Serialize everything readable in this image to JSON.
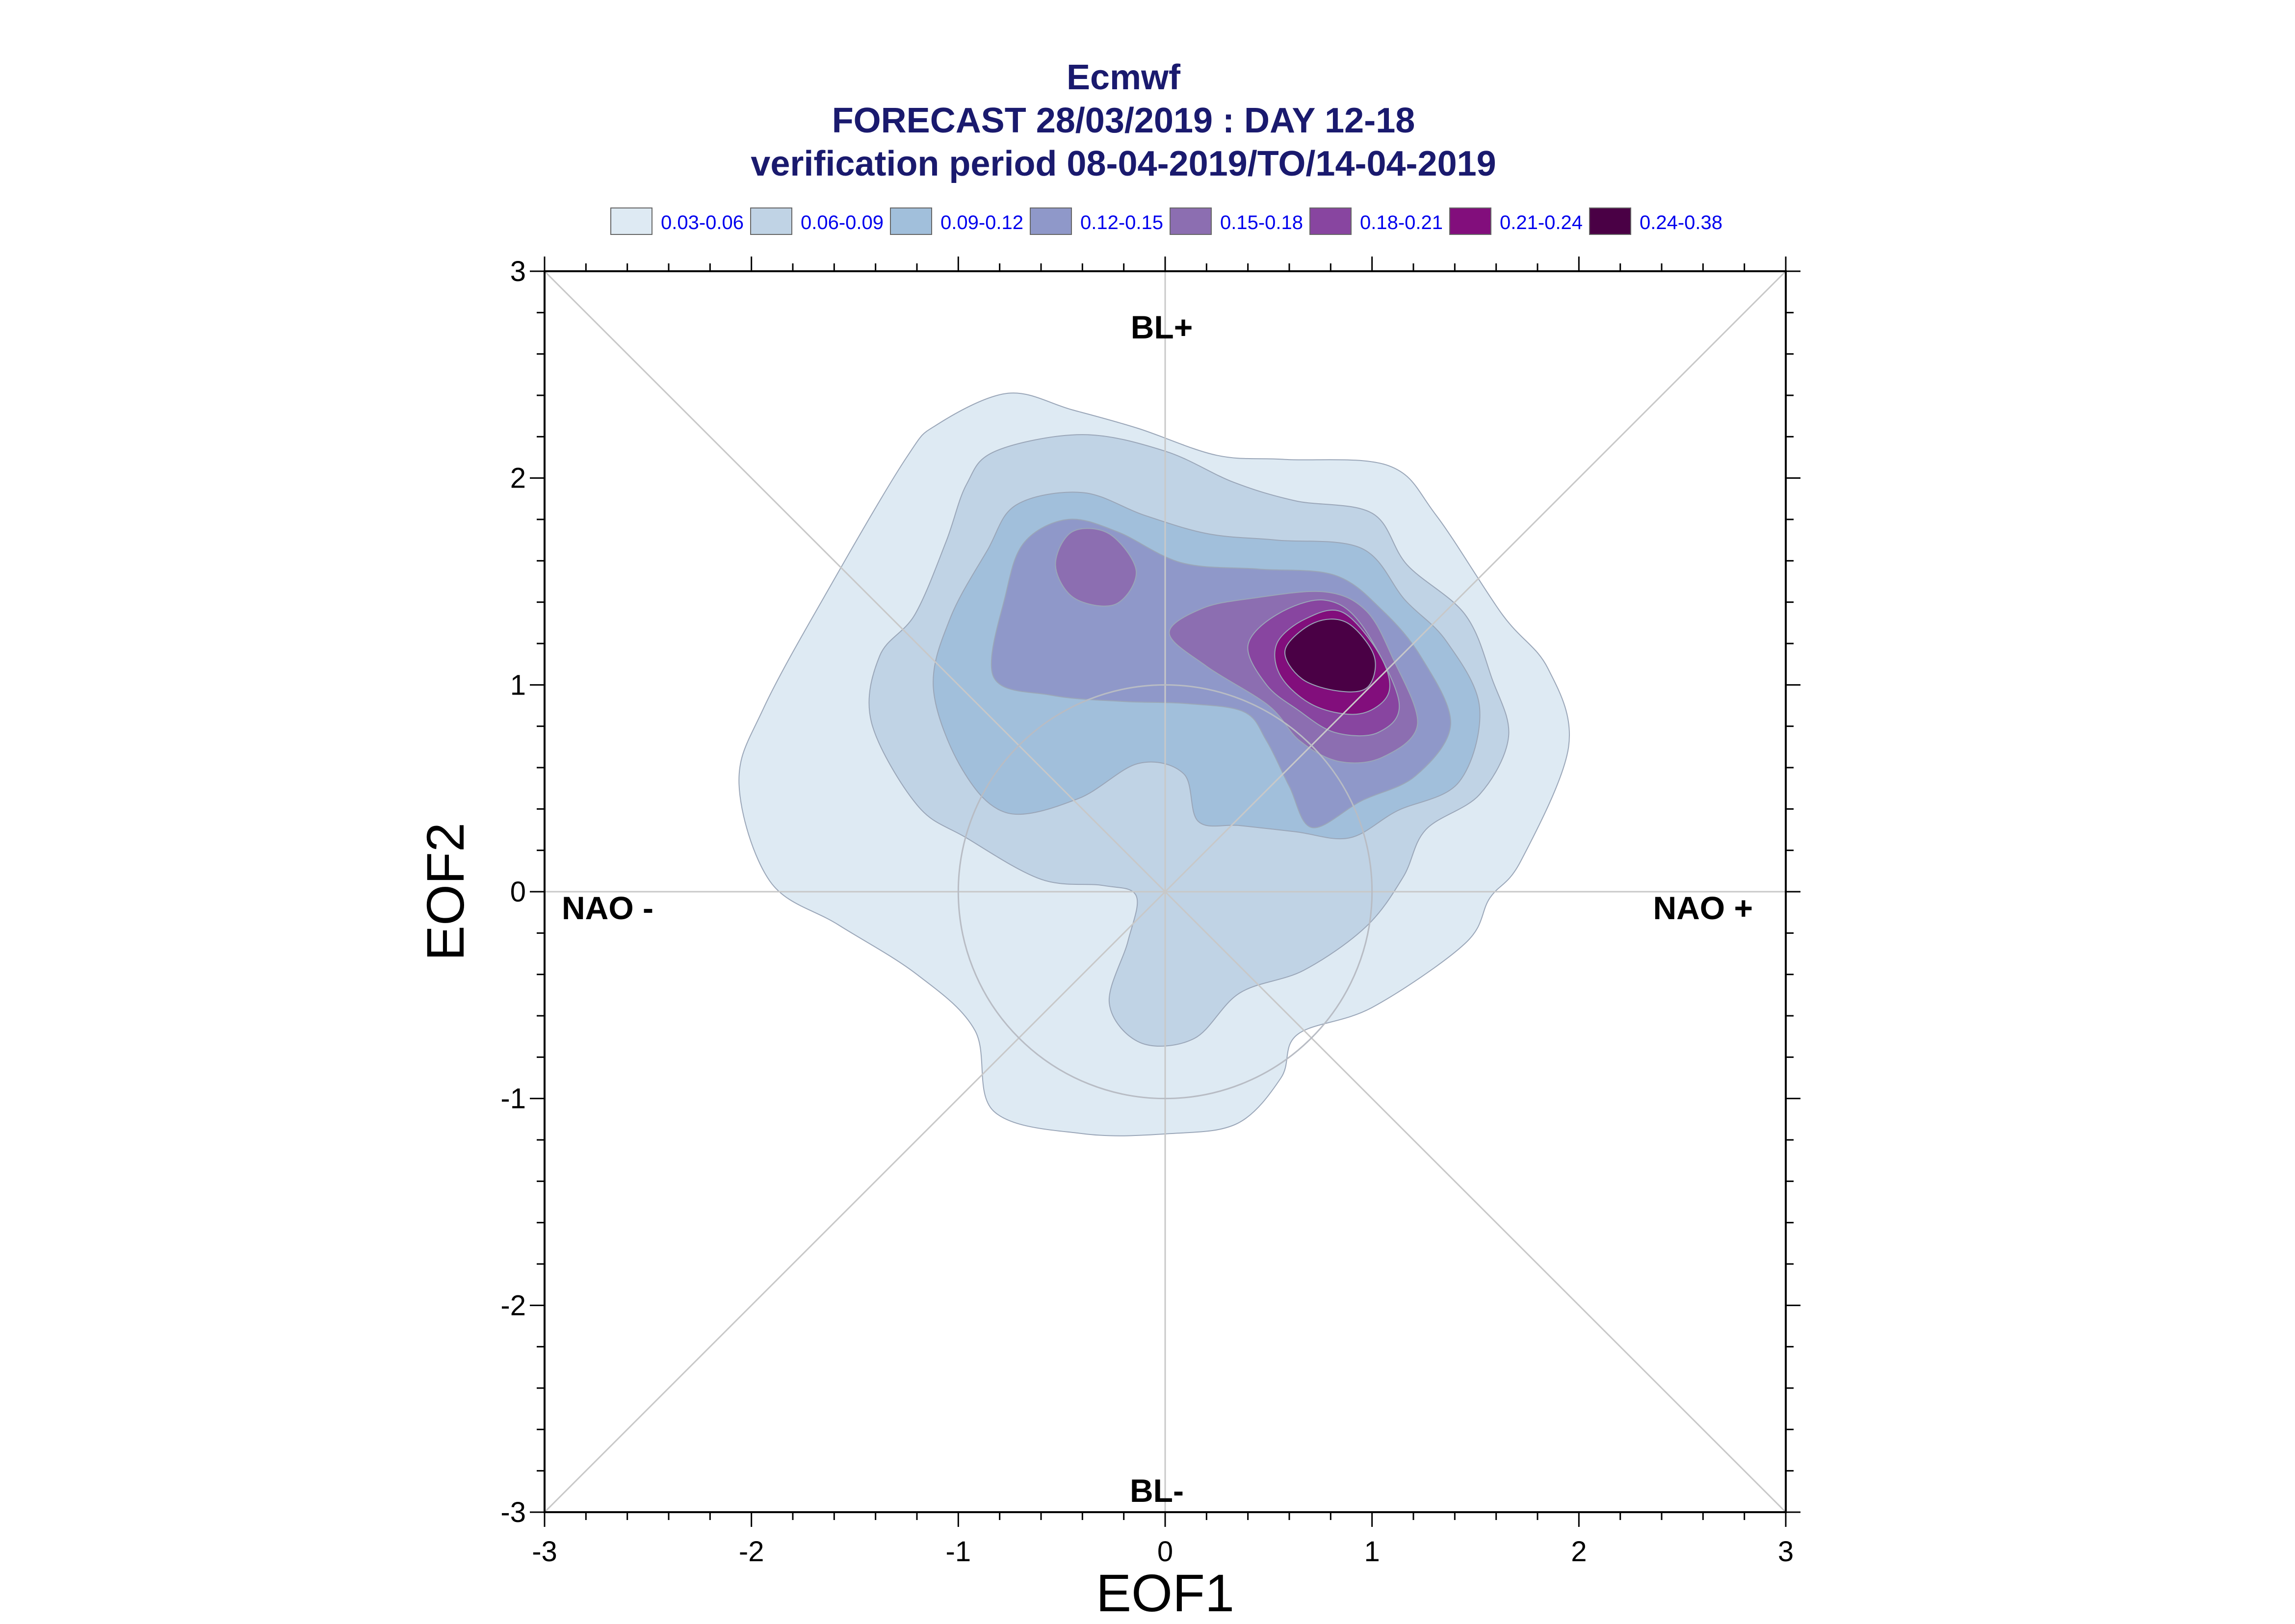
{
  "chart_data": {
    "type": "contour",
    "title": "Ecmwf",
    "subtitle": "FORECAST 28/03/2019 : DAY 12-18",
    "subtitle2": "verification period 08-04-2019/TO/14-04-2019",
    "xlabel": "EOF1",
    "ylabel": "EOF2",
    "xlim": [
      -3,
      3
    ],
    "ylim": [
      -3,
      3
    ],
    "xticks": [
      "-3",
      "-2",
      "-1",
      "0",
      "1",
      "2",
      "3"
    ],
    "yticks": [
      "-3",
      "-2",
      "-1",
      "0",
      "1",
      "2",
      "3"
    ],
    "region_labels": {
      "top": "BL+",
      "bottom": "BL-",
      "left": "NAO -",
      "right": "NAO +"
    },
    "legend": [
      {
        "label": "0.03-0.06",
        "color": "#deeaf3"
      },
      {
        "label": "0.06-0.09",
        "color": "#c0d3e5"
      },
      {
        "label": "0.09-0.12",
        "color": "#a1bfdb"
      },
      {
        "label": "0.12-0.15",
        "color": "#8f98c9"
      },
      {
        "label": "0.15-0.18",
        "color": "#8c6eb1"
      },
      {
        "label": "0.18-0.21",
        "color": "#8845a0"
      },
      {
        "label": "0.21-0.24",
        "color": "#820e7c"
      },
      {
        "label": "0.24-0.38",
        "color": "#4a0045"
      }
    ],
    "levels": [
      {
        "range": "0.03-0.06",
        "contours": [
          [
            [
              -2.06,
              0.52
            ],
            [
              -1.94,
              0.89
            ],
            [
              -1.6,
              1.51
            ],
            [
              -1.25,
              2.1
            ],
            [
              -1.1,
              2.26
            ],
            [
              -0.76,
              2.41
            ],
            [
              -0.45,
              2.33
            ],
            [
              -0.13,
              2.24
            ],
            [
              0.25,
              2.11
            ],
            [
              0.58,
              2.09
            ],
            [
              1.08,
              2.06
            ],
            [
              1.31,
              1.82
            ],
            [
              1.63,
              1.34
            ],
            [
              1.85,
              1.08
            ],
            [
              1.95,
              0.7
            ],
            [
              1.72,
              0.15
            ],
            [
              1.57,
              -0.03
            ],
            [
              1.45,
              -0.25
            ],
            [
              1.0,
              -0.56
            ],
            [
              0.64,
              -0.69
            ],
            [
              0.56,
              -0.9
            ],
            [
              0.35,
              -1.12
            ],
            [
              0.02,
              -1.17
            ],
            [
              -0.4,
              -1.17
            ],
            [
              -0.83,
              -1.06
            ],
            [
              -0.92,
              -0.67
            ],
            [
              -1.2,
              -0.4
            ],
            [
              -1.58,
              -0.16
            ],
            [
              -1.91,
              0.05
            ]
          ]
        ]
      },
      {
        "range": "0.06-0.09",
        "contours": [
          [
            [
              -1.42,
              0.82
            ],
            [
              -1.38,
              1.14
            ],
            [
              -1.21,
              1.34
            ],
            [
              -1.06,
              1.69
            ],
            [
              -0.96,
              1.97
            ],
            [
              -0.82,
              2.13
            ],
            [
              -0.4,
              2.21
            ],
            [
              0.0,
              2.13
            ],
            [
              0.33,
              1.98
            ],
            [
              0.63,
              1.89
            ],
            [
              1.0,
              1.83
            ],
            [
              1.17,
              1.58
            ],
            [
              1.45,
              1.34
            ],
            [
              1.58,
              1.03
            ],
            [
              1.66,
              0.75
            ],
            [
              1.52,
              0.47
            ],
            [
              1.26,
              0.3
            ],
            [
              1.15,
              0.07
            ],
            [
              0.97,
              -0.17
            ],
            [
              0.67,
              -0.38
            ],
            [
              0.36,
              -0.49
            ],
            [
              0.14,
              -0.71
            ],
            [
              -0.12,
              -0.73
            ],
            [
              -0.27,
              -0.54
            ],
            [
              -0.18,
              -0.24
            ],
            [
              -0.14,
              -0.02
            ],
            [
              -0.3,
              0.03
            ],
            [
              -0.6,
              0.06
            ],
            [
              -0.96,
              0.26
            ],
            [
              -1.2,
              0.42
            ]
          ]
        ]
      },
      {
        "range": "0.09-0.12",
        "contours": [
          [
            [
              -1.12,
              0.98
            ],
            [
              -1.04,
              1.32
            ],
            [
              -0.86,
              1.65
            ],
            [
              -0.72,
              1.87
            ],
            [
              -0.4,
              1.93
            ],
            [
              -0.1,
              1.82
            ],
            [
              0.21,
              1.73
            ],
            [
              0.54,
              1.7
            ],
            [
              0.95,
              1.66
            ],
            [
              1.16,
              1.41
            ],
            [
              1.36,
              1.21
            ],
            [
              1.52,
              0.89
            ],
            [
              1.42,
              0.53
            ],
            [
              1.12,
              0.39
            ],
            [
              0.89,
              0.26
            ],
            [
              0.63,
              0.29
            ],
            [
              0.36,
              0.32
            ],
            [
              0.16,
              0.34
            ],
            [
              0.09,
              0.57
            ],
            [
              -0.13,
              0.62
            ],
            [
              -0.42,
              0.45
            ],
            [
              -0.76,
              0.38
            ],
            [
              -0.98,
              0.59
            ]
          ]
        ]
      },
      {
        "range": "0.12-0.15",
        "contours": [
          [
            [
              -0.83,
              1.04
            ],
            [
              -0.77,
              1.44
            ],
            [
              -0.68,
              1.69
            ],
            [
              -0.47,
              1.8
            ],
            [
              -0.23,
              1.74
            ],
            [
              0.08,
              1.59
            ],
            [
              0.45,
              1.56
            ],
            [
              0.82,
              1.53
            ],
            [
              1.05,
              1.36
            ],
            [
              1.24,
              1.13
            ],
            [
              1.38,
              0.81
            ],
            [
              1.21,
              0.56
            ],
            [
              0.95,
              0.44
            ],
            [
              0.71,
              0.31
            ],
            [
              0.6,
              0.51
            ],
            [
              0.49,
              0.73
            ],
            [
              0.38,
              0.87
            ],
            [
              0.1,
              0.91
            ],
            [
              -0.2,
              0.92
            ],
            [
              -0.55,
              0.95
            ]
          ]
        ]
      },
      {
        "range": "0.15-0.18",
        "contours": [
          [
            [
              -0.53,
              1.58
            ],
            [
              -0.45,
              1.74
            ],
            [
              -0.27,
              1.73
            ],
            [
              -0.14,
              1.55
            ],
            [
              -0.24,
              1.39
            ],
            [
              -0.44,
              1.42
            ]
          ],
          [
            [
              0.02,
              1.25
            ],
            [
              0.18,
              1.37
            ],
            [
              0.43,
              1.42
            ],
            [
              0.77,
              1.45
            ],
            [
              0.97,
              1.36
            ],
            [
              1.1,
              1.13
            ],
            [
              1.22,
              0.81
            ],
            [
              1.05,
              0.65
            ],
            [
              0.84,
              0.63
            ],
            [
              0.65,
              0.73
            ],
            [
              0.5,
              0.9
            ],
            [
              0.2,
              1.09
            ]
          ]
        ]
      },
      {
        "range": "0.18-0.21",
        "contours": [
          [
            [
              0.4,
              1.19
            ],
            [
              0.54,
              1.34
            ],
            [
              0.77,
              1.41
            ],
            [
              0.95,
              1.29
            ],
            [
              1.13,
              0.92
            ],
            [
              1.03,
              0.77
            ],
            [
              0.82,
              0.77
            ],
            [
              0.64,
              0.88
            ],
            [
              0.49,
              1.0
            ]
          ]
        ]
      },
      {
        "range": "0.21-0.24",
        "contours": [
          [
            [
              0.54,
              1.2
            ],
            [
              0.68,
              1.32
            ],
            [
              0.86,
              1.35
            ],
            [
              1.04,
              1.14
            ],
            [
              1.08,
              0.96
            ],
            [
              0.94,
              0.86
            ],
            [
              0.72,
              0.9
            ],
            [
              0.56,
              1.04
            ]
          ]
        ]
      },
      {
        "range": "0.24-0.38",
        "contours": [
          [
            [
              0.58,
              1.17
            ],
            [
              0.72,
              1.3
            ],
            [
              0.88,
              1.3
            ],
            [
              1.01,
              1.14
            ],
            [
              0.98,
              0.99
            ],
            [
              0.84,
              0.97
            ],
            [
              0.66,
              1.03
            ]
          ]
        ]
      }
    ],
    "reference_circle_radius": 1,
    "diagonals": true,
    "grid": false,
    "legend_position": "top"
  }
}
